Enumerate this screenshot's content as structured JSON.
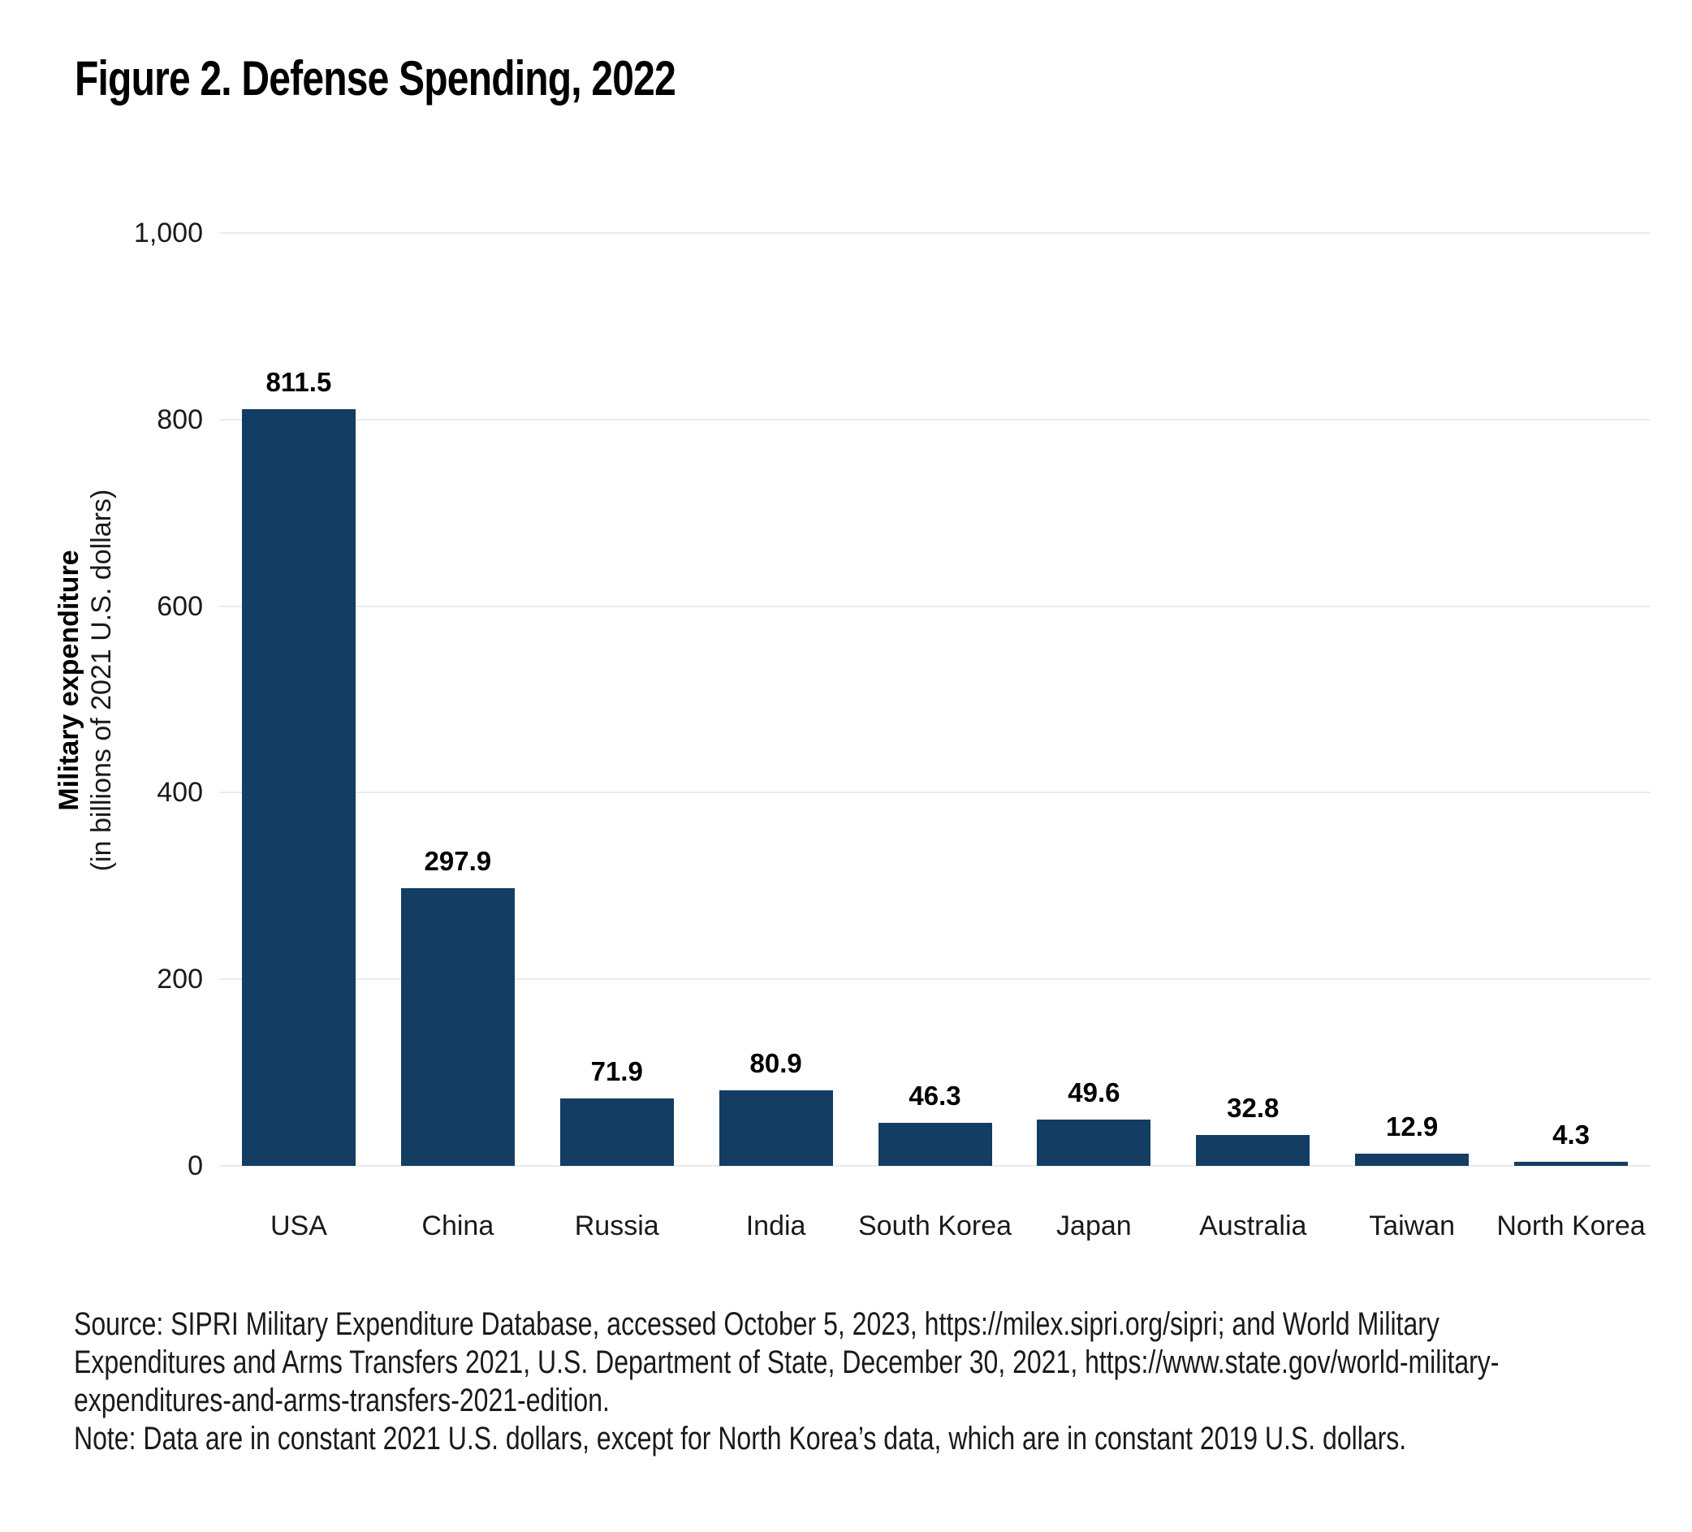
{
  "title": "Figure 2. Defense Spending, 2022",
  "chart_data": {
    "type": "bar",
    "title": "Figure 2. Defense Spending, 2022",
    "categories": [
      "USA",
      "China",
      "Russia",
      "India",
      "South Korea",
      "Japan",
      "Australia",
      "Taiwan",
      "North Korea"
    ],
    "values": [
      811.5,
      297.9,
      71.9,
      80.9,
      46.3,
      49.6,
      32.8,
      12.9,
      4.3
    ],
    "value_labels": [
      "811.5",
      "297.9",
      "71.9",
      "80.9",
      "46.3",
      "49.6",
      "32.8",
      "12.9",
      "4.3"
    ],
    "xlabel": "",
    "ylabel_bold": "Military expenditure",
    "ylabel_sub": "(in billions of 2021 U.S. dollars)",
    "ylim": [
      0,
      1000
    ],
    "yticks": [
      0,
      200,
      400,
      600,
      800,
      1000
    ],
    "ytick_labels": [
      "0",
      "200",
      "400",
      "600",
      "800",
      "1,000"
    ],
    "grid": true,
    "legend": false,
    "bar_color": "#133d63"
  },
  "source_note": {
    "lines": [
      "Source: SIPRI Military Expenditure Database, accessed October 5, 2023, https://milex.sipri.org/sipri; and World Military",
      "Expenditures and Arms Transfers 2021, U.S. Department of State, December 30, 2021, https://www.state.gov/world-military-",
      "expenditures-and-arms-transfers-2021-edition.",
      "Note: Data are in constant 2021 U.S. dollars, except for North Korea’s data, which are in constant 2019 U.S. dollars."
    ]
  },
  "colors": {
    "bar": "#133d63",
    "grid": "#ebebeb",
    "text": "#000000",
    "muted_text": "#1a1a1a",
    "background": "#ffffff"
  }
}
